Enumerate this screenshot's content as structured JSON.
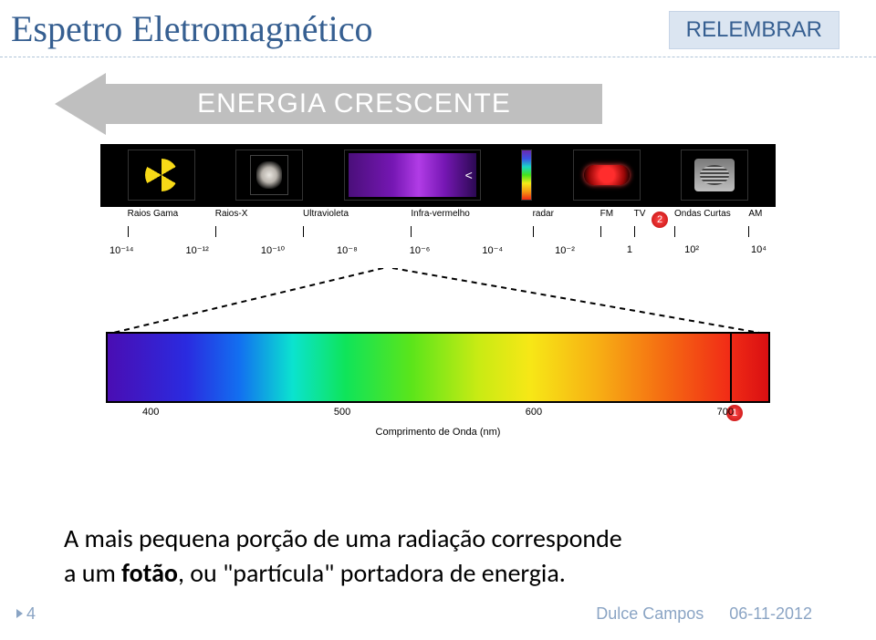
{
  "title": "Espetro Eletromagnético",
  "badge": "RELEMBRAR",
  "arrow_label": "ENERGIA CRESCENTE",
  "diagram": {
    "scale_labels": [
      {
        "text": "Raios Gama",
        "left_pct": 4
      },
      {
        "text": "Raios-X",
        "left_pct": 17
      },
      {
        "text": "Ultravioleta",
        "left_pct": 30
      },
      {
        "text": "Infra-vermelho",
        "left_pct": 46
      },
      {
        "text": "radar",
        "left_pct": 64
      },
      {
        "text": "FM",
        "left_pct": 74
      },
      {
        "text": "TV",
        "left_pct": 79
      },
      {
        "text": "Ondas Curtas",
        "left_pct": 85
      },
      {
        "text": "AM",
        "left_pct": 96
      }
    ],
    "powers": [
      "10⁻¹⁴",
      "10⁻¹²",
      "10⁻¹⁰",
      "10⁻⁸",
      "10⁻⁶",
      "10⁻⁴",
      "10⁻²",
      "1",
      "10²",
      "10⁴"
    ],
    "nm_ticks": [
      "400",
      "500",
      "600",
      "700"
    ],
    "nm_caption": "Comprimento de Onda (nm)"
  },
  "bottom": {
    "line1_a": "A mais pequena porção de uma radiação corresponde",
    "line2_a": "a um ",
    "bold1": "fotão",
    "line2_b": ", ou \"partícula\" portadora de energia."
  },
  "footer": {
    "page": "4",
    "author": "Dulce Campos",
    "date": "06-11-2012"
  },
  "colors": {
    "title": "#365f91",
    "badge_bg": "#dbe5f1",
    "arrow": "#bfbfbf"
  }
}
